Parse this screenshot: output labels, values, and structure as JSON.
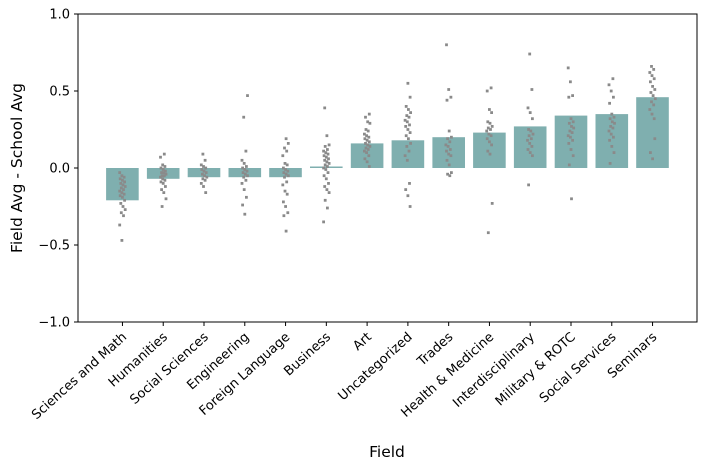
{
  "chart_data": {
    "type": "bar",
    "subtype": "bar-with-strip-points",
    "title": "",
    "xlabel": "Field",
    "ylabel": "Field Avg - School Avg",
    "ylim": [
      -1.0,
      1.0
    ],
    "yticks": [
      1.0,
      0.5,
      0.0,
      -0.5,
      -1.0
    ],
    "grid": false,
    "legend": false,
    "bar_color": "#7fafaf",
    "point_color": "#8a8a8a",
    "spine_color": "#000000",
    "categories": [
      "Sciences and Math",
      "Humanities",
      "Social Sciences",
      "Engineering",
      "Foreign Language",
      "Business",
      "Art",
      "Uncategorized",
      "Trades",
      "Health & Medicine",
      "Interdisciplinary",
      "Military & ROTC",
      "Social Services",
      "Seminars"
    ],
    "values": [
      -0.21,
      -0.07,
      -0.06,
      -0.06,
      -0.06,
      0.01,
      0.16,
      0.18,
      0.2,
      0.23,
      0.27,
      0.34,
      0.35,
      0.46
    ],
    "scatter_points": [
      [
        -0.03,
        -0.05,
        -0.06,
        -0.07,
        -0.08,
        -0.09,
        -0.1,
        -0.11,
        -0.12,
        -0.13,
        -0.14,
        -0.15,
        -0.16,
        -0.17,
        -0.18,
        -0.19,
        -0.21,
        -0.23,
        -0.25,
        -0.27,
        -0.29,
        -0.31,
        -0.37,
        -0.47
      ],
      [
        0.09,
        0.07,
        0.02,
        0.01,
        0.0,
        -0.01,
        -0.02,
        -0.03,
        -0.03,
        -0.04,
        -0.05,
        -0.05,
        -0.06,
        -0.07,
        -0.08,
        -0.09,
        -0.1,
        -0.12,
        -0.14,
        -0.16,
        -0.2,
        -0.25
      ],
      [
        0.09,
        0.05,
        0.02,
        0.01,
        0.0,
        -0.01,
        -0.02,
        -0.03,
        -0.04,
        -0.05,
        -0.06,
        -0.07,
        -0.08,
        -0.1,
        -0.12,
        -0.16
      ],
      [
        0.47,
        0.33,
        0.11,
        0.05,
        0.03,
        0.01,
        0.0,
        -0.01,
        -0.02,
        -0.03,
        -0.04,
        -0.05,
        -0.06,
        -0.08,
        -0.1,
        -0.14,
        -0.19,
        -0.24,
        -0.3
      ],
      [
        0.19,
        0.16,
        0.13,
        0.11,
        0.08,
        0.03,
        0.02,
        0.0,
        -0.01,
        -0.02,
        -0.03,
        -0.04,
        -0.05,
        -0.06,
        -0.09,
        -0.11,
        -0.15,
        -0.17,
        -0.22,
        -0.25,
        -0.29,
        -0.31,
        -0.41
      ],
      [
        0.39,
        0.21,
        0.15,
        0.14,
        0.12,
        0.11,
        0.1,
        0.09,
        0.08,
        0.07,
        0.06,
        0.05,
        0.04,
        0.03,
        0.02,
        0.01,
        0.0,
        -0.01,
        -0.03,
        -0.05,
        -0.07,
        -0.1,
        -0.12,
        -0.14,
        -0.16,
        -0.21,
        -0.26,
        -0.35
      ],
      [
        0.35,
        0.33,
        0.3,
        0.29,
        0.25,
        0.24,
        0.22,
        0.21,
        0.2,
        0.19,
        0.18,
        0.17,
        0.16,
        0.15,
        0.14,
        0.13,
        0.12,
        0.11,
        0.1,
        0.08,
        0.06,
        0.04,
        0.01
      ],
      [
        0.55,
        0.46,
        0.4,
        0.38,
        0.36,
        0.34,
        0.33,
        0.31,
        0.3,
        0.28,
        0.27,
        0.25,
        0.23,
        0.21,
        0.19,
        0.16,
        0.14,
        0.11,
        0.08,
        0.05,
        -0.1,
        -0.14,
        -0.18,
        -0.25
      ],
      [
        0.8,
        0.51,
        0.46,
        0.44,
        0.24,
        0.2,
        0.19,
        0.17,
        0.15,
        0.14,
        0.12,
        0.11,
        0.09,
        0.08,
        0.05,
        0.02,
        -0.03,
        -0.04,
        -0.05
      ],
      [
        0.52,
        0.5,
        0.38,
        0.36,
        0.3,
        0.29,
        0.27,
        0.26,
        0.25,
        0.24,
        0.22,
        0.21,
        0.19,
        0.17,
        0.15,
        0.11,
        0.09,
        -0.23,
        -0.42
      ],
      [
        0.74,
        0.51,
        0.39,
        0.36,
        0.32,
        0.25,
        0.24,
        0.22,
        0.21,
        0.19,
        0.18,
        0.16,
        0.14,
        0.12,
        0.1,
        0.08,
        -0.11
      ],
      [
        0.65,
        0.56,
        0.47,
        0.46,
        0.32,
        0.3,
        0.29,
        0.27,
        0.26,
        0.24,
        0.23,
        0.21,
        0.2,
        0.18,
        0.16,
        0.12,
        0.08,
        0.02,
        -0.2
      ],
      [
        0.58,
        0.54,
        0.5,
        0.46,
        0.42,
        0.35,
        0.33,
        0.32,
        0.3,
        0.29,
        0.27,
        0.26,
        0.24,
        0.22,
        0.2,
        0.18,
        0.14,
        0.1,
        0.03
      ],
      [
        0.66,
        0.64,
        0.62,
        0.6,
        0.58,
        0.56,
        0.53,
        0.51,
        0.49,
        0.47,
        0.45,
        0.43,
        0.41,
        0.38,
        0.35,
        0.32,
        0.1,
        0.06,
        0.19
      ]
    ]
  }
}
